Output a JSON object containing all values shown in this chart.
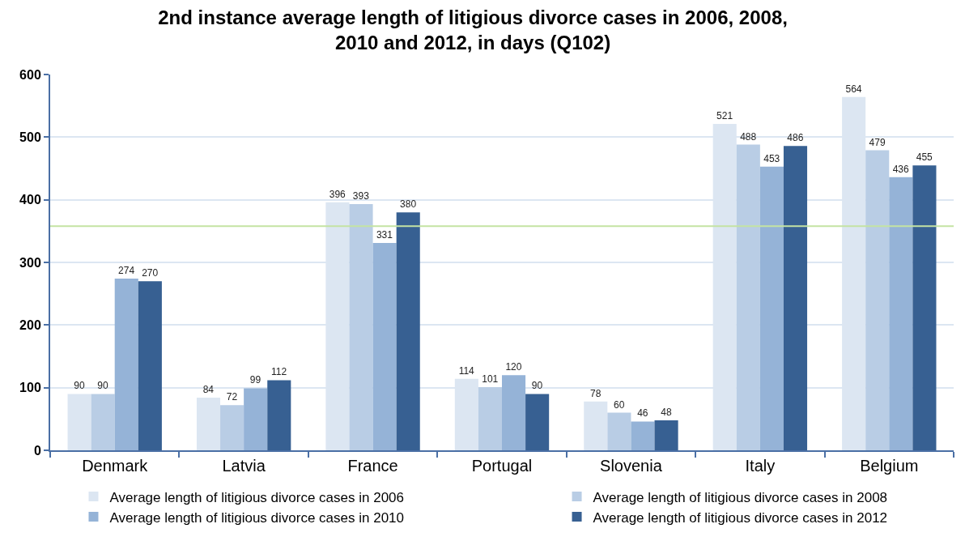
{
  "chart_data": {
    "type": "bar",
    "title": "2nd instance average length of litigious divorce cases in 2006, 2008, 2010 and 2012, in days (Q102)",
    "categories": [
      "Denmark",
      "Latvia",
      "France",
      "Portugal",
      "Slovenia",
      "Italy",
      "Belgium"
    ],
    "series": [
      {
        "name": "Average length of litigious divorce cases in 2006",
        "color": "#dce6f2",
        "values": [
          90,
          84,
          396,
          114,
          78,
          521,
          564
        ]
      },
      {
        "name": "Average length of litigious divorce cases in 2008",
        "color": "#b9cde5",
        "values": [
          90,
          72,
          393,
          101,
          60,
          488,
          479
        ]
      },
      {
        "name": "Average length of litigious divorce cases in 2010",
        "color": "#95b3d7",
        "values": [
          274,
          99,
          331,
          120,
          46,
          453,
          436
        ]
      },
      {
        "name": "Average length of litigious divorce cases in 2012",
        "color": "#376092",
        "values": [
          270,
          112,
          380,
          90,
          48,
          486,
          455
        ]
      }
    ],
    "ylim": [
      0,
      600
    ],
    "yticks": [
      0,
      100,
      200,
      300,
      400,
      500,
      600
    ],
    "ref_lines": [
      {
        "axis": "y",
        "value": 358,
        "color": "#c4e3a3"
      }
    ],
    "data_labels": true,
    "grid": "y",
    "legend": "bottom"
  }
}
